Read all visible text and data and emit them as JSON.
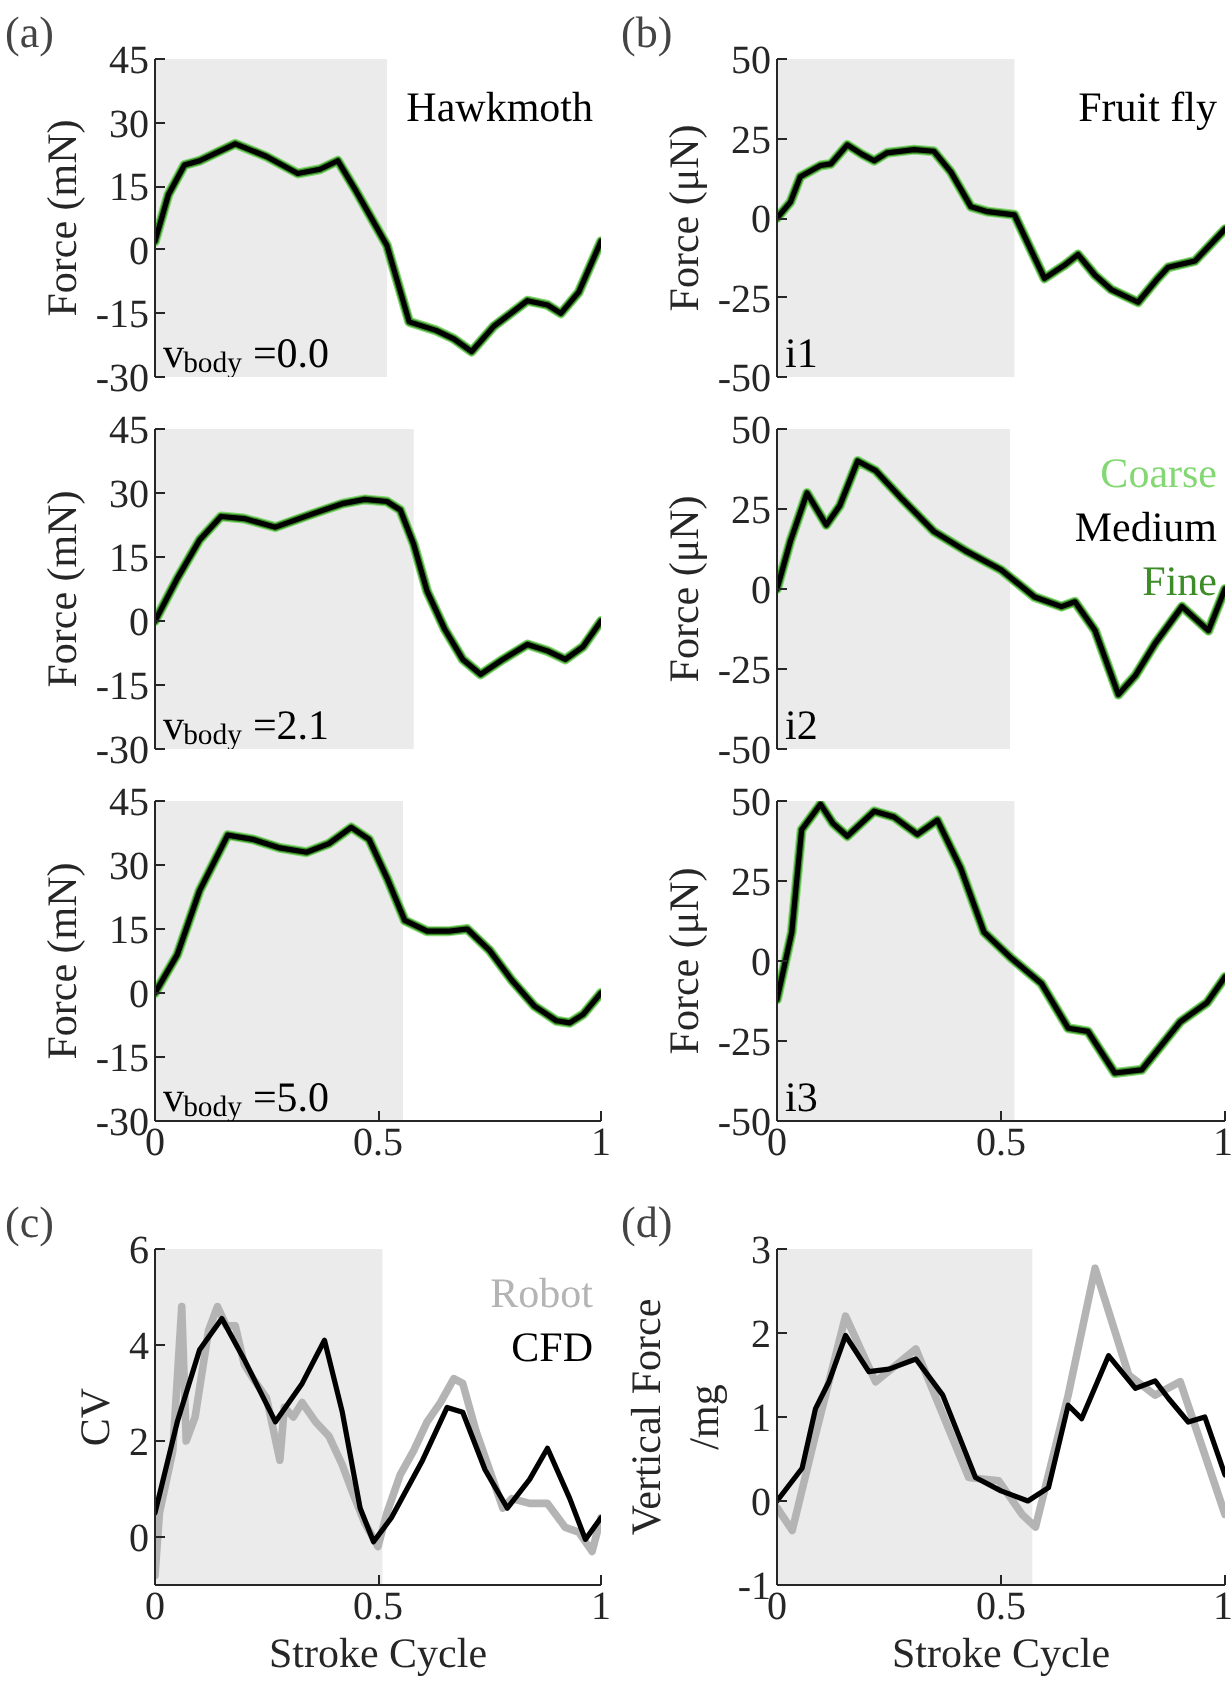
{
  "chart_data": [
    {
      "type": "line",
      "annotations": [
        "(a)",
        "Hawkmoth",
        "v$_{body}$ =0.0"
      ],
      "ylabel": "Force (mN)",
      "xlim": [
        0,
        1
      ],
      "ylim": [
        -30,
        45
      ],
      "yticks": [
        -30,
        -15,
        0,
        15,
        30,
        45
      ],
      "tick_labels": "y",
      "bands": [
        {
          "axis": "x",
          "from": 0,
          "to": 0.52,
          "color": "#ebebeb"
        }
      ],
      "x": [
        0,
        0.03,
        0.066,
        0.1,
        0.18,
        0.25,
        0.32,
        0.37,
        0.41,
        0.45,
        0.52,
        0.57,
        0.63,
        0.67,
        0.71,
        0.76,
        0.835,
        0.88,
        0.91,
        0.95,
        1.0
      ],
      "series": [
        {
          "color": "#84d874",
          "values": [
            2,
            13,
            20,
            21,
            25,
            22,
            18,
            19,
            21,
            14,
            1,
            -17,
            -19,
            -21,
            -24,
            -18,
            -12,
            -13,
            -15,
            -10,
            2
          ]
        },
        {
          "color": "#000000",
          "values": [
            2,
            13,
            20,
            21,
            25,
            22,
            18,
            19,
            21,
            14,
            1,
            -17,
            -19,
            -21,
            -24,
            -18,
            -12,
            -13,
            -15,
            -10,
            2
          ]
        },
        {
          "color": "#3c8c28",
          "values": [
            2,
            13,
            20,
            21,
            25,
            22,
            18,
            19,
            21,
            14,
            1,
            -17,
            -19,
            -21,
            -24,
            -18,
            -12,
            -13,
            -15,
            -10,
            2
          ]
        }
      ]
    },
    {
      "type": "line",
      "annotations": [
        "(b)",
        "Fruit fly",
        "i1"
      ],
      "ylabel": "Force (μN)",
      "xlim": [
        0,
        1
      ],
      "ylim": [
        -50,
        50
      ],
      "yticks": [
        -50,
        -25,
        0,
        25,
        50
      ],
      "tick_labels": "y",
      "bands": [
        {
          "axis": "x",
          "from": 0,
          "to": 0.53,
          "color": "#ebebeb"
        }
      ],
      "x": [
        0,
        0.03,
        0.052,
        0.097,
        0.12,
        0.157,
        0.19,
        0.217,
        0.246,
        0.306,
        0.35,
        0.388,
        0.433,
        0.47,
        0.53,
        0.56,
        0.597,
        0.64,
        0.672,
        0.71,
        0.746,
        0.806,
        0.85,
        0.873,
        0.933,
        1.0
      ],
      "series": [
        {
          "color": "#84d874",
          "values": [
            0,
            5,
            13,
            16.5,
            17,
            23,
            20,
            18,
            20.5,
            21.5,
            21,
            14.5,
            3.5,
            2,
            1,
            -8,
            -19,
            -15,
            -11.5,
            -18,
            -22.5,
            -26.5,
            -19,
            -15.5,
            -13.5,
            -3.5
          ]
        },
        {
          "color": "#000000",
          "values": [
            0,
            5,
            13,
            16.5,
            17,
            23,
            20,
            18,
            20.5,
            21.5,
            21,
            14.5,
            3.5,
            2,
            1,
            -8,
            -19,
            -15,
            -11.5,
            -18,
            -22.5,
            -26.5,
            -19,
            -15.5,
            -13.5,
            -3.5
          ]
        },
        {
          "color": "#3c8c28",
          "values": [
            0,
            5,
            13,
            16.5,
            17,
            23,
            20,
            18,
            20.5,
            21.5,
            21,
            14.5,
            3.5,
            2,
            1,
            -8,
            -19,
            -15,
            -11.5,
            -18,
            -22.5,
            -26.5,
            -19,
            -15.5,
            -13.5,
            -3.5
          ]
        }
      ]
    },
    {
      "type": "line",
      "annotations": [
        "v$_{body}$ =2.1"
      ],
      "ylabel": "Force (mN)",
      "xlim": [
        0,
        1
      ],
      "ylim": [
        -30,
        45
      ],
      "yticks": [
        -30,
        -15,
        0,
        15,
        30,
        45
      ],
      "tick_labels": "y",
      "bands": [
        {
          "axis": "x",
          "from": 0,
          "to": 0.58,
          "color": "#ebebeb"
        }
      ],
      "x": [
        0,
        0.05,
        0.1,
        0.148,
        0.2,
        0.27,
        0.35,
        0.42,
        0.47,
        0.52,
        0.55,
        0.58,
        0.61,
        0.65,
        0.69,
        0.73,
        0.78,
        0.835,
        0.88,
        0.92,
        0.96,
        1.0
      ],
      "series": [
        {
          "color": "#84d874",
          "values": [
            0,
            10,
            19,
            24.5,
            24,
            22,
            25,
            27.5,
            28.5,
            28,
            26,
            18,
            7,
            -2,
            -9,
            -12.5,
            -9,
            -5.5,
            -7,
            -9,
            -6,
            0
          ]
        },
        {
          "color": "#000000",
          "values": [
            0,
            10,
            19,
            24.5,
            24,
            22,
            25,
            27.5,
            28.5,
            28,
            26,
            18,
            7,
            -2,
            -9,
            -12.5,
            -9,
            -5.5,
            -7,
            -9,
            -6,
            0
          ]
        },
        {
          "color": "#3c8c28",
          "values": [
            0,
            10,
            19,
            24.5,
            24,
            22,
            25,
            27.5,
            28.5,
            28,
            26,
            18,
            7,
            -2,
            -9,
            -12.5,
            -9,
            -5.5,
            -7,
            -9,
            -6,
            0
          ]
        }
      ]
    },
    {
      "type": "line",
      "annotations": [
        "i2"
      ],
      "ylabel": "Force (μN)",
      "xlim": [
        0,
        1
      ],
      "ylim": [
        -50,
        50
      ],
      "yticks": [
        -50,
        -25,
        0,
        25,
        50
      ],
      "tick_labels": "y",
      "legend": "top right",
      "bands": [
        {
          "axis": "x",
          "from": 0,
          "to": 0.52,
          "color": "#ebebeb"
        }
      ],
      "x": [
        0,
        0.03,
        0.067,
        0.11,
        0.14,
        0.18,
        0.22,
        0.28,
        0.35,
        0.42,
        0.5,
        0.575,
        0.635,
        0.665,
        0.71,
        0.762,
        0.8,
        0.844,
        0.904,
        0.963,
        1.0
      ],
      "series": [
        {
          "name": "Coarse",
          "color": "#84d874",
          "values": [
            0,
            15,
            30,
            20,
            26,
            40,
            37,
            28,
            18,
            12,
            6,
            -2.5,
            -5.5,
            -4,
            -13,
            -33,
            -27,
            -17,
            -5.5,
            -13,
            0
          ]
        },
        {
          "name": "Medium",
          "color": "#000000",
          "values": [
            0,
            15,
            30,
            20,
            26,
            40,
            37,
            28,
            18,
            12,
            6,
            -2.5,
            -5.5,
            -4,
            -13,
            -33,
            -27,
            -17,
            -5.5,
            -13,
            0
          ]
        },
        {
          "name": "Fine",
          "color": "#3c8c28",
          "values": [
            0,
            15,
            30,
            20,
            26,
            40,
            37,
            28,
            18,
            12,
            6,
            -2.5,
            -5.5,
            -4,
            -13,
            -33,
            -27,
            -17,
            -5.5,
            -13,
            0
          ]
        }
      ]
    },
    {
      "type": "line",
      "annotations": [
        "v$_{body}$ =5.0"
      ],
      "ylabel": "Force (mN)",
      "xlim": [
        0,
        1
      ],
      "ylim": [
        -30,
        45
      ],
      "xticks": [
        0,
        0.5,
        1
      ],
      "yticks": [
        -30,
        -15,
        0,
        15,
        30,
        45
      ],
      "bands": [
        {
          "axis": "x",
          "from": 0,
          "to": 0.556,
          "color": "#ebebeb"
        }
      ],
      "x": [
        0,
        0.05,
        0.1,
        0.163,
        0.22,
        0.28,
        0.34,
        0.39,
        0.44,
        0.48,
        0.52,
        0.56,
        0.61,
        0.66,
        0.7,
        0.75,
        0.8,
        0.85,
        0.9,
        0.93,
        0.96,
        1.0
      ],
      "series": [
        {
          "color": "#84d874",
          "values": [
            0,
            9,
            24,
            37,
            36,
            34,
            33,
            35,
            38.8,
            36,
            27,
            17,
            14.5,
            14.5,
            15,
            10,
            3,
            -3,
            -6.5,
            -7,
            -5,
            0
          ]
        },
        {
          "color": "#000000",
          "values": [
            0,
            9,
            24,
            37,
            36,
            34,
            33,
            35,
            38.8,
            36,
            27,
            17,
            14.5,
            14.5,
            15,
            10,
            3,
            -3,
            -6.5,
            -7,
            -5,
            0
          ]
        },
        {
          "color": "#3c8c28",
          "values": [
            0,
            9,
            24,
            37,
            36,
            34,
            33,
            35,
            38.8,
            36,
            27,
            17,
            14.5,
            14.5,
            15,
            10,
            3,
            -3,
            -6.5,
            -7,
            -5,
            0
          ]
        }
      ]
    },
    {
      "type": "line",
      "annotations": [
        "i3"
      ],
      "ylabel": "Force (μN)",
      "xlim": [
        0,
        1
      ],
      "ylim": [
        -50,
        50
      ],
      "xticks": [
        0,
        0.5,
        1
      ],
      "yticks": [
        -50,
        -25,
        0,
        25,
        50
      ],
      "bands": [
        {
          "axis": "x",
          "from": 0,
          "to": 0.53,
          "color": "#ebebeb"
        }
      ],
      "x": [
        0,
        0.033,
        0.055,
        0.097,
        0.125,
        0.157,
        0.217,
        0.261,
        0.313,
        0.358,
        0.41,
        0.462,
        0.522,
        0.59,
        0.65,
        0.694,
        0.754,
        0.814,
        0.9,
        0.96,
        1.0
      ],
      "series": [
        {
          "color": "#84d874",
          "values": [
            -12,
            9,
            41,
            49,
            43,
            39,
            46.8,
            45,
            39.6,
            44,
            29,
            9,
            1,
            -7,
            -21,
            -22,
            -35,
            -34,
            -19,
            -13,
            -5
          ]
        },
        {
          "color": "#000000",
          "values": [
            -12,
            9,
            41,
            49,
            43,
            39,
            46.8,
            45,
            39.6,
            44,
            29,
            9,
            1,
            -7,
            -21,
            -22,
            -35,
            -34,
            -19,
            -13,
            -5
          ]
        },
        {
          "color": "#3c8c28",
          "values": [
            -12,
            9,
            41,
            49,
            43,
            39,
            46.8,
            45,
            39.6,
            44,
            29,
            9,
            1,
            -7,
            -21,
            -22,
            -35,
            -34,
            -19,
            -13,
            -5
          ]
        }
      ]
    },
    {
      "type": "line",
      "annotations": [
        "(c)"
      ],
      "xlabel": "Stroke Cycle",
      "ylabel": "CV",
      "xlim": [
        0,
        1
      ],
      "ylim": [
        -1,
        6
      ],
      "xticks": [
        0,
        0.5,
        1
      ],
      "yticks": [
        0,
        2,
        4,
        6
      ],
      "legend": "top right",
      "bands": [
        {
          "axis": "x",
          "from": 0,
          "to": 0.51,
          "color": "#ebebeb"
        }
      ],
      "series": [
        {
          "name": "Robot",
          "color": "#b4b4b4",
          "x": [
            0,
            0.01,
            0.04,
            0.06,
            0.07,
            0.09,
            0.12,
            0.14,
            0.16,
            0.18,
            0.2,
            0.22,
            0.25,
            0.28,
            0.29,
            0.31,
            0.33,
            0.36,
            0.39,
            0.42,
            0.44,
            0.47,
            0.5,
            0.52,
            0.55,
            0.58,
            0.61,
            0.64,
            0.67,
            0.69,
            0.72,
            0.75,
            0.78,
            0.8,
            0.84,
            0.88,
            0.92,
            0.95,
            0.98,
            1.0
          ],
          "values": [
            -0.8,
            0.5,
            1.8,
            4.8,
            2,
            2.5,
            4.3,
            4.8,
            4.4,
            4.4,
            3.6,
            3.3,
            2.9,
            1.6,
            2.7,
            2.5,
            2.8,
            2.4,
            2.1,
            1.5,
            1.0,
            0.3,
            -0.2,
            0.5,
            1.3,
            1.8,
            2.4,
            2.8,
            3.3,
            3.2,
            2.2,
            1.4,
            0.6,
            0.8,
            0.7,
            0.7,
            0.2,
            0.1,
            -0.3,
            0.4
          ]
        },
        {
          "name": "CFD",
          "color": "#000000",
          "x": [
            0,
            0.05,
            0.1,
            0.15,
            0.2,
            0.27,
            0.33,
            0.38,
            0.42,
            0.46,
            0.49,
            0.53,
            0.6,
            0.655,
            0.69,
            0.74,
            0.79,
            0.84,
            0.88,
            0.93,
            0.965,
            1.0
          ],
          "values": [
            0.5,
            2.4,
            3.9,
            4.55,
            3.7,
            2.4,
            3.2,
            4.1,
            2.6,
            0.6,
            -0.1,
            0.4,
            1.6,
            2.7,
            2.6,
            1.4,
            0.6,
            1.2,
            1.85,
            0.8,
            -0.05,
            0.4
          ]
        }
      ]
    },
    {
      "type": "line",
      "annotations": [
        "(d)"
      ],
      "xlabel": "Stroke Cycle",
      "ylabel": "Vertical Force\n/mg",
      "xlim": [
        0,
        1
      ],
      "ylim": [
        -1,
        3
      ],
      "xticks": [
        0,
        0.5,
        1
      ],
      "yticks": [
        -1,
        0,
        1,
        2,
        3
      ],
      "bands": [
        {
          "axis": "x",
          "from": 0,
          "to": 0.57,
          "color": "#ebebeb"
        }
      ],
      "series": [
        {
          "color": "#b4b4b4",
          "x": [
            0,
            0.034,
            0.086,
            0.153,
            0.22,
            0.31,
            0.428,
            0.495,
            0.547,
            0.577,
            0.65,
            0.71,
            0.785,
            0.844,
            0.9,
            1.0
          ],
          "values": [
            -0.08,
            -0.35,
            0.79,
            2.2,
            1.42,
            1.81,
            0.28,
            0.24,
            -0.16,
            -0.31,
            1.26,
            2.77,
            1.5,
            1.26,
            1.42,
            -0.16
          ]
        },
        {
          "color": "#000000",
          "x": [
            0,
            0.056,
            0.086,
            0.116,
            0.153,
            0.205,
            0.25,
            0.31,
            0.37,
            0.443,
            0.5,
            0.56,
            0.606,
            0.65,
            0.68,
            0.74,
            0.8,
            0.844,
            0.874,
            0.918,
            0.955,
            1.0
          ],
          "values": [
            0,
            0.39,
            1.1,
            1.42,
            1.97,
            1.54,
            1.57,
            1.69,
            1.26,
            0.28,
            0.12,
            0,
            0.16,
            1.14,
            0.98,
            1.73,
            1.34,
            1.43,
            1.22,
            0.94,
            1.0,
            0.31
          ]
        }
      ]
    }
  ]
}
